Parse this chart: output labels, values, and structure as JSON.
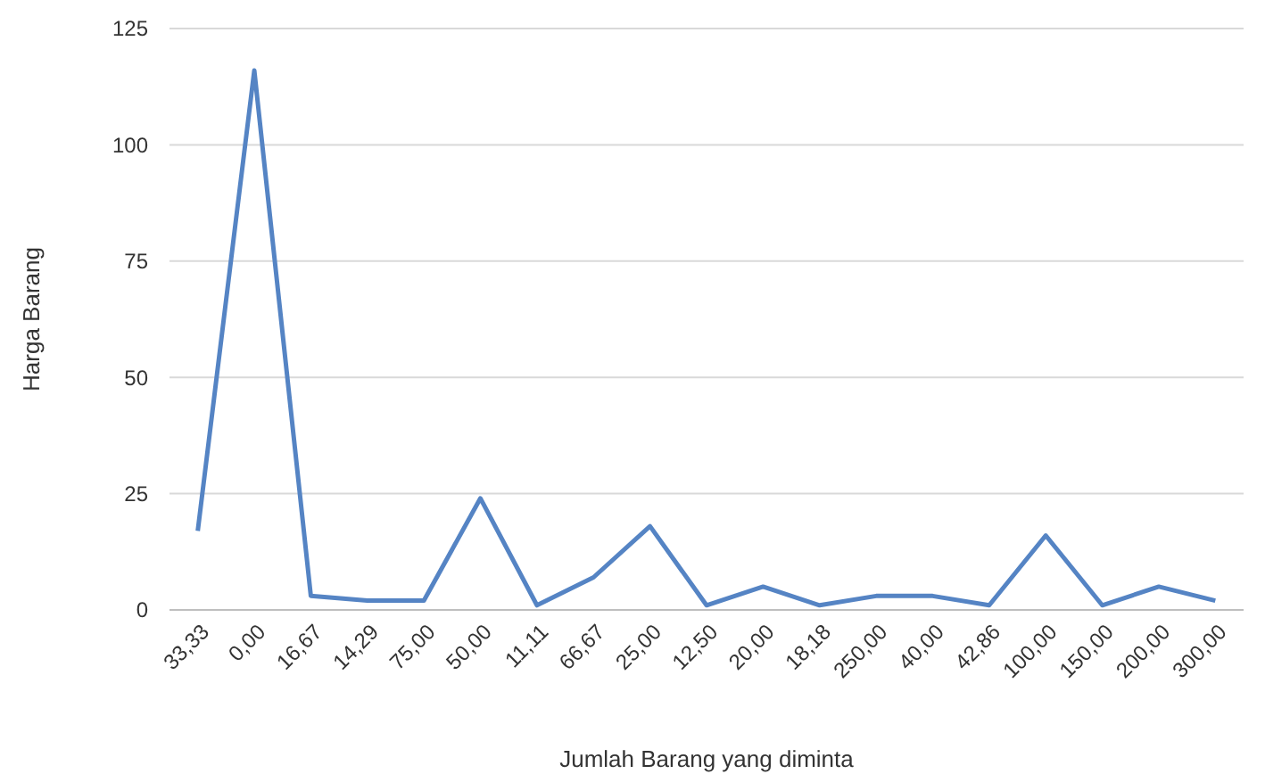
{
  "chart_data": {
    "type": "line",
    "xlabel": "Jumlah Barang yang diminta",
    "ylabel": "Harga Barang",
    "categories": [
      "33,33",
      "0,00",
      "16,67",
      "14,29",
      "75,00",
      "50,00",
      "11,11",
      "66,67",
      "25,00",
      "12,50",
      "20,00",
      "18,18",
      "250,00",
      "40,00",
      "42,86",
      "100,00",
      "150,00",
      "200,00",
      "300,00"
    ],
    "series": [
      {
        "color": "#5584c4",
        "values": [
          17,
          116,
          3,
          2,
          2,
          24,
          1,
          7,
          18,
          1,
          5,
          1,
          3,
          3,
          1,
          16,
          1,
          5,
          2
        ]
      }
    ],
    "ylim": [
      0,
      125
    ],
    "yticks": [
      0,
      25,
      50,
      75,
      100,
      125
    ],
    "grid": "y",
    "marker": "none",
    "line_style": "solid"
  }
}
